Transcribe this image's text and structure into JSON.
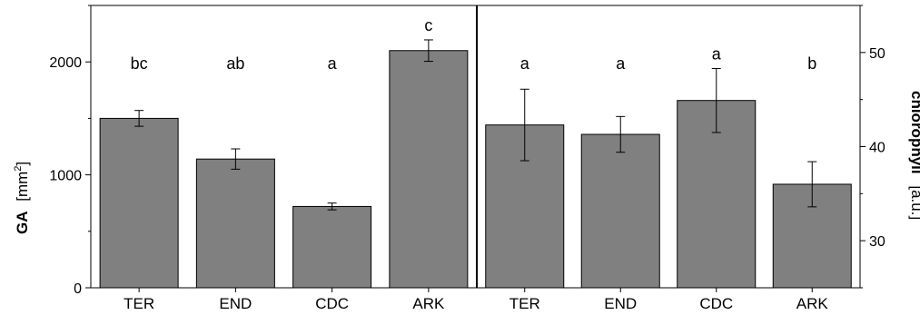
{
  "chart_data": [
    {
      "type": "bar",
      "categories": [
        "TER",
        "END",
        "CDC",
        "ARK"
      ],
      "values": [
        1500,
        1140,
        720,
        2100
      ],
      "errors": [
        70,
        90,
        30,
        95
      ],
      "letters": [
        "bc",
        "ab",
        "a",
        "c"
      ],
      "ylabel_bold": "GA",
      "ylabel_rest": "[mm",
      "ylabel_sup": "2",
      "ylabel_end": "]",
      "yticks": [
        0,
        1000,
        2000
      ],
      "ylim": [
        0,
        2500
      ],
      "bar_color": "#808080"
    },
    {
      "type": "bar",
      "categories": [
        "TER",
        "END",
        "CDC",
        "ARK"
      ],
      "values": [
        42.3,
        41.3,
        44.9,
        36.0
      ],
      "errors": [
        3.8,
        1.9,
        3.4,
        2.4
      ],
      "letters": [
        "a",
        "a",
        "a",
        "b"
      ],
      "ylabel_bold": "chlorophyll",
      "ylabel_rest": "[a.u.]",
      "yticks": [
        30,
        40,
        50
      ],
      "ylim": [
        25,
        55
      ],
      "y_axis_side": "right",
      "bar_color": "#808080"
    }
  ]
}
